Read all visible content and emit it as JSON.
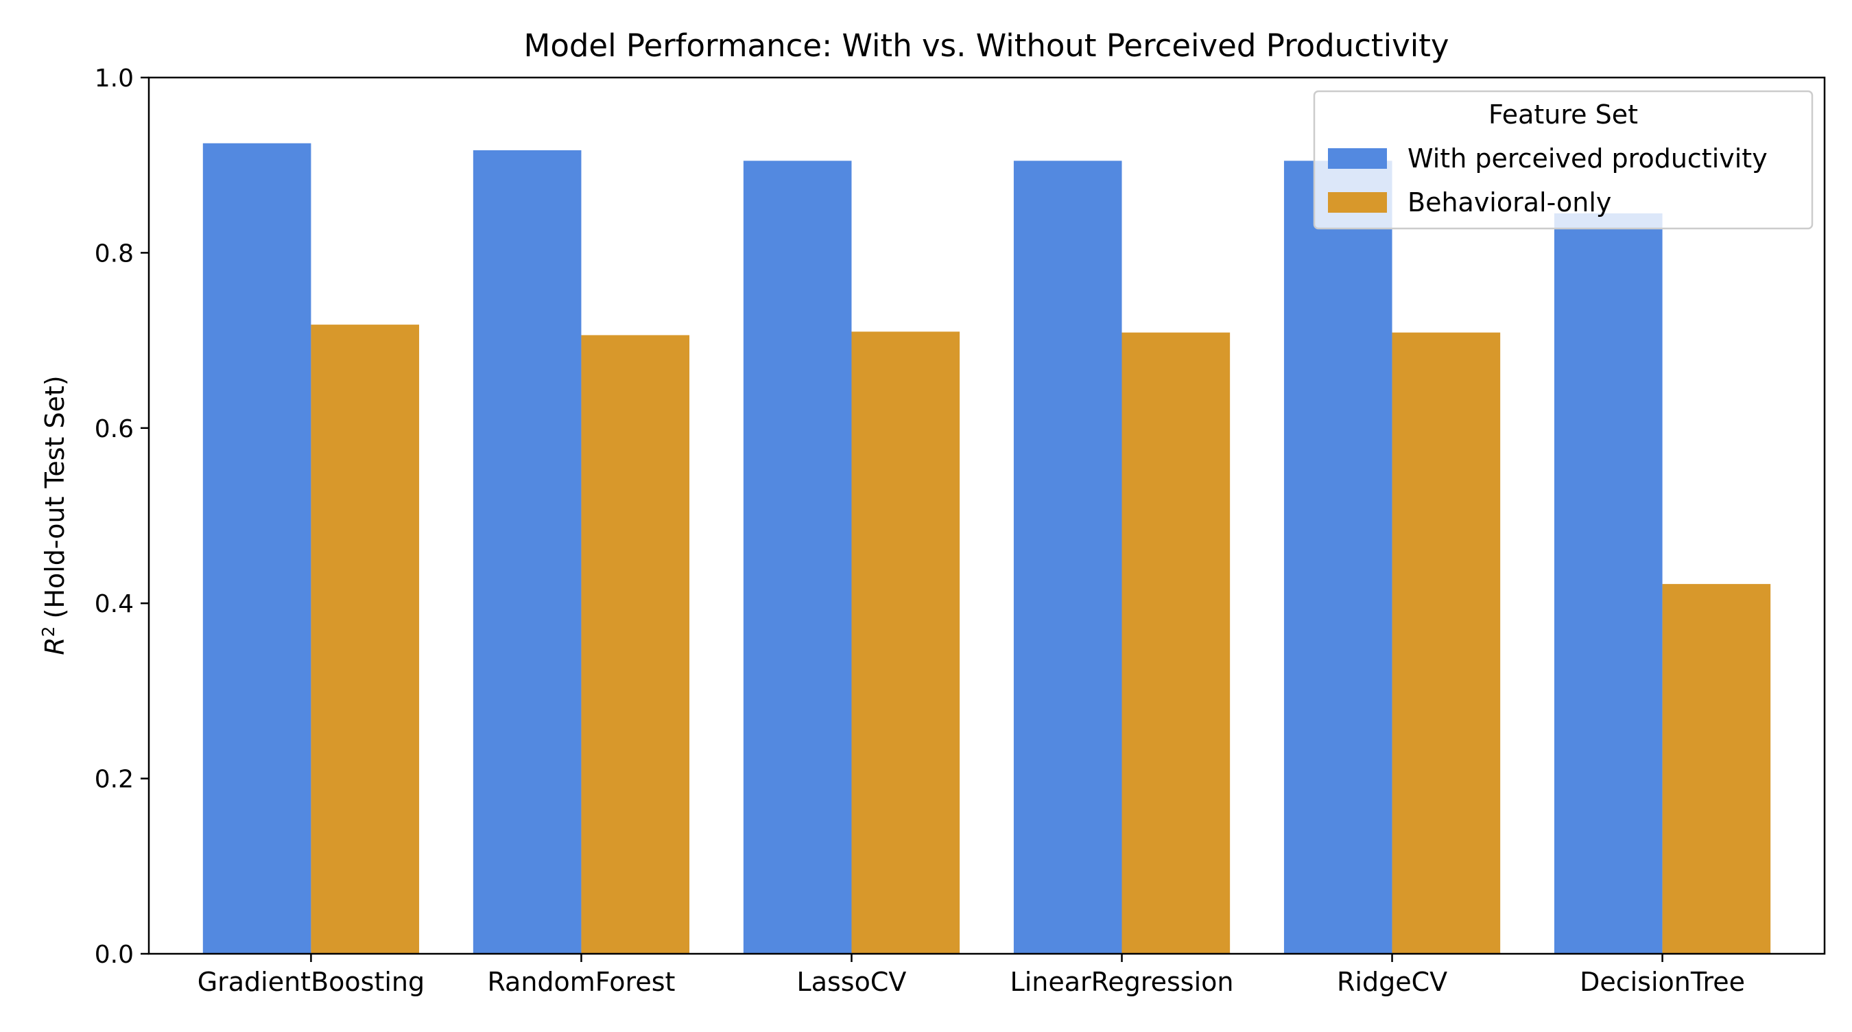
{
  "chart_data": {
    "type": "bar",
    "title": "Model Performance: With vs. Without Perceived Productivity",
    "xlabel": "",
    "ylabel": "(Hold-out Test Set)",
    "ylabel_symbol": "R",
    "ylabel_superscript": "2",
    "ylim": [
      0.0,
      1.0
    ],
    "yticks": [
      "0.0",
      "0.2",
      "0.4",
      "0.6",
      "0.8",
      "1.0"
    ],
    "categories": [
      "GradientBoosting",
      "RandomForest",
      "LassoCV",
      "LinearRegression",
      "RidgeCV",
      "DecisionTree"
    ],
    "series": [
      {
        "name": "With perceived productivity",
        "color": "#5389e0",
        "values": [
          0.925,
          0.917,
          0.905,
          0.905,
          0.905,
          0.845
        ]
      },
      {
        "name": "Behavioral-only",
        "color": "#d8982b",
        "values": [
          0.718,
          0.706,
          0.71,
          0.709,
          0.709,
          0.422
        ]
      }
    ],
    "legend": {
      "title": "Feature Set",
      "placement": "top-right"
    },
    "grid": false
  }
}
